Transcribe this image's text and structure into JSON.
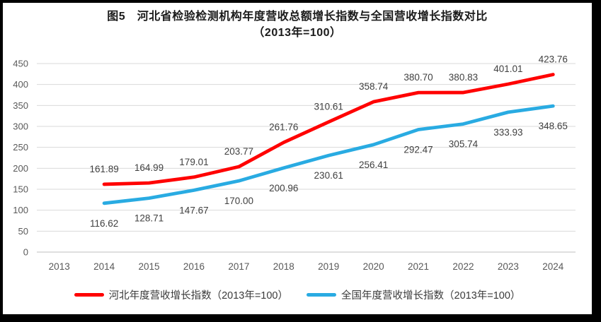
{
  "title": "图5　河北省检验检测机构年度营收总额增长指数与全国营收增长指数对比",
  "subtitle": "（2013年=100）",
  "chart_data": {
    "type": "line",
    "title": "图5　河北省检验检测机构年度营收总额增长指数与全国营收增长指数对比（2013年=100）",
    "categories": [
      "2013",
      "2014",
      "2015",
      "2016",
      "2017",
      "2018",
      "2019",
      "2020",
      "2021",
      "2022",
      "2023",
      "2024"
    ],
    "series": [
      {
        "name": "河北年度营收增长指数（2013年=100）",
        "color": "#FF0000",
        "label_position": "above",
        "values": [
          null,
          161.89,
          164.99,
          179.01,
          203.77,
          261.76,
          310.61,
          358.74,
          380.7,
          380.83,
          401.01,
          423.76
        ]
      },
      {
        "name": "全国年度营收增长指数（2013年=100）",
        "color": "#29ABE2",
        "label_position": "below",
        "values": [
          null,
          116.62,
          128.71,
          147.67,
          170.0,
          200.96,
          230.61,
          256.41,
          292.47,
          305.74,
          333.93,
          348.65
        ]
      }
    ],
    "xlabel": "",
    "ylabel": "",
    "ylim": [
      0,
      450
    ],
    "yticks": [
      0,
      50,
      100,
      150,
      200,
      250,
      300,
      350,
      400,
      450
    ],
    "grid": true,
    "legend_position": "bottom",
    "data_label_decimals": 2,
    "colors": {
      "gridline": "#D9D9D9",
      "axis_line": "#BFBFBF",
      "tick_text": "#595959",
      "data_label_text": "#404040",
      "title_text": "#1a1a1a"
    }
  }
}
